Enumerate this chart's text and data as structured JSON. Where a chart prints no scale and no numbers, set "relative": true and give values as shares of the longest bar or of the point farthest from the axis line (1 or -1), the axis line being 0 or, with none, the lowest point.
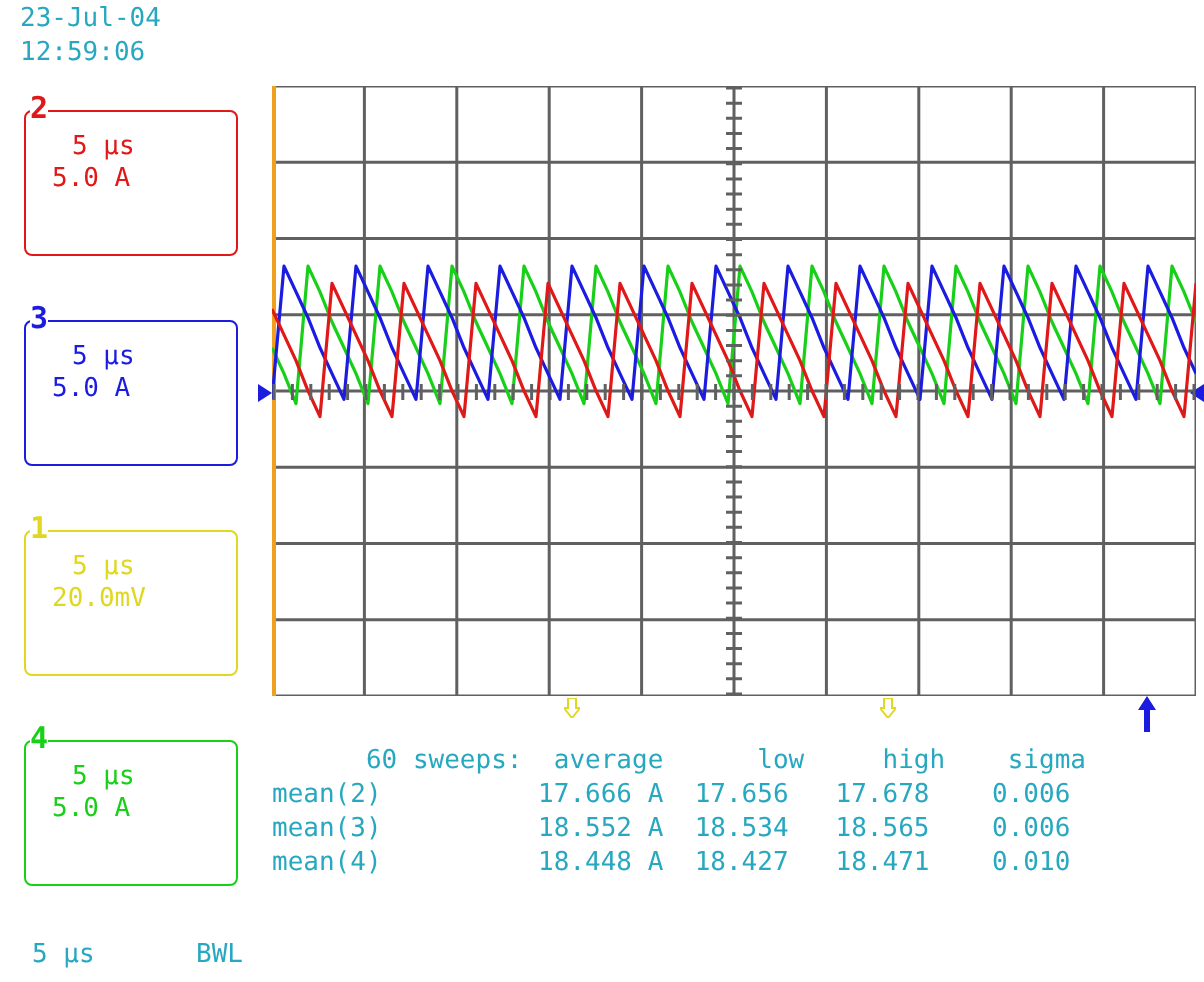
{
  "chart_data": {
    "type": "line",
    "relative": true,
    "grid": true,
    "legend": "left",
    "marker": "none",
    "line_style": "solid",
    "categories": [
      null,
      null,
      null,
      null,
      null,
      null,
      null,
      null,
      null,
      null,
      null,
      null,
      null,
      null,
      null,
      null,
      null,
      null,
      null,
      null,
      null,
      null,
      null,
      null,
      null,
      null,
      null,
      null,
      null,
      null,
      null,
      null,
      null,
      null,
      null,
      null,
      null,
      null,
      null,
      null,
      null,
      null,
      null,
      null,
      null,
      null,
      null,
      null,
      null,
      null,
      null,
      null,
      null,
      null,
      null,
      null,
      null,
      null,
      null,
      null,
      null,
      null,
      null,
      null,
      null,
      null,
      null,
      null,
      null,
      null,
      null,
      null,
      null,
      null,
      null,
      null,
      null,
      null
    ],
    "series": [
      {
        "name": "2",
        "color": "#e01818",
        "values": [
          0.9,
          0.84,
          0.78,
          0.71,
          0.65,
          0.96,
          0.9,
          0.84,
          0.78,
          0.71,
          0.65,
          0.96,
          0.9,
          0.84,
          0.78,
          0.71,
          0.65,
          0.96,
          0.9,
          0.84,
          0.78,
          0.71,
          0.65,
          0.96,
          0.9,
          0.84,
          0.78,
          0.71,
          0.65,
          0.96,
          0.9,
          0.84,
          0.78,
          0.71,
          0.65,
          0.96,
          0.9,
          0.84,
          0.78,
          0.71,
          0.65,
          0.96,
          0.9,
          0.84,
          0.78,
          0.71,
          0.65,
          0.96,
          0.9,
          0.84,
          0.78,
          0.71,
          0.65,
          0.96,
          0.9,
          0.84,
          0.78,
          0.71,
          0.65,
          0.96,
          0.9,
          0.84,
          0.78,
          0.71,
          0.65,
          0.96,
          0.9,
          0.84,
          0.78,
          0.71,
          0.65,
          0.96,
          0.9,
          0.84,
          0.78,
          0.71,
          0.65,
          0.96
        ]
      },
      {
        "name": "3",
        "color": "#1c1ce0",
        "values": [
          0.69,
          1,
          0.94,
          0.88,
          0.81,
          0.75,
          0.69,
          1,
          0.94,
          0.88,
          0.81,
          0.75,
          0.69,
          1,
          0.94,
          0.88,
          0.81,
          0.75,
          0.69,
          1,
          0.94,
          0.88,
          0.81,
          0.75,
          0.69,
          1,
          0.94,
          0.88,
          0.81,
          0.75,
          0.69,
          1,
          0.94,
          0.88,
          0.81,
          0.75,
          0.69,
          1,
          0.94,
          0.88,
          0.81,
          0.75,
          0.69,
          1,
          0.94,
          0.88,
          0.81,
          0.75,
          0.69,
          1,
          0.94,
          0.88,
          0.81,
          0.75,
          0.69,
          1,
          0.94,
          0.88,
          0.81,
          0.75,
          0.69,
          1,
          0.94,
          0.88,
          0.81,
          0.75,
          0.69,
          1,
          0.94,
          0.88,
          0.81,
          0.75,
          0.69,
          1,
          0.94,
          0.88,
          0.81,
          0.75
        ]
      },
      {
        "name": "4",
        "color": "#18d018",
        "values": [
          0.81,
          0.75,
          0.68,
          1,
          0.94,
          0.87,
          0.81,
          0.75,
          0.68,
          1,
          0.94,
          0.87,
          0.81,
          0.75,
          0.68,
          1,
          0.94,
          0.87,
          0.81,
          0.75,
          0.68,
          1,
          0.94,
          0.87,
          0.81,
          0.75,
          0.68,
          1,
          0.94,
          0.87,
          0.81,
          0.75,
          0.68,
          1,
          0.94,
          0.87,
          0.81,
          0.75,
          0.68,
          1,
          0.94,
          0.87,
          0.81,
          0.75,
          0.68,
          1,
          0.94,
          0.87,
          0.81,
          0.75,
          0.68,
          1,
          0.94,
          0.87,
          0.81,
          0.75,
          0.68,
          1,
          0.94,
          0.87,
          0.81,
          0.75,
          0.68,
          1,
          0.94,
          0.87,
          0.81,
          0.75,
          0.68,
          1,
          0.94,
          0.87,
          0.81,
          0.75,
          0.68,
          1,
          0.94,
          0.87
        ]
      }
    ],
    "annotations": [
      "23-Jul-04",
      "12:59:06",
      "5 µs",
      "5.0 A",
      "5 µs",
      "5.0 A",
      "1",
      "5 µs",
      "20.0mV",
      "5 µs",
      "5.0 A",
      "      60 sweeps:  average      low     high    sigma",
      "mean(2)          17.666 A  17.656   17.678    0.006",
      "mean(3)          18.552 A  18.534   18.565    0.006",
      "mean(4)          18.448 A  18.427   18.471    0.010",
      "5 µs",
      "BWL"
    ]
  }
}
